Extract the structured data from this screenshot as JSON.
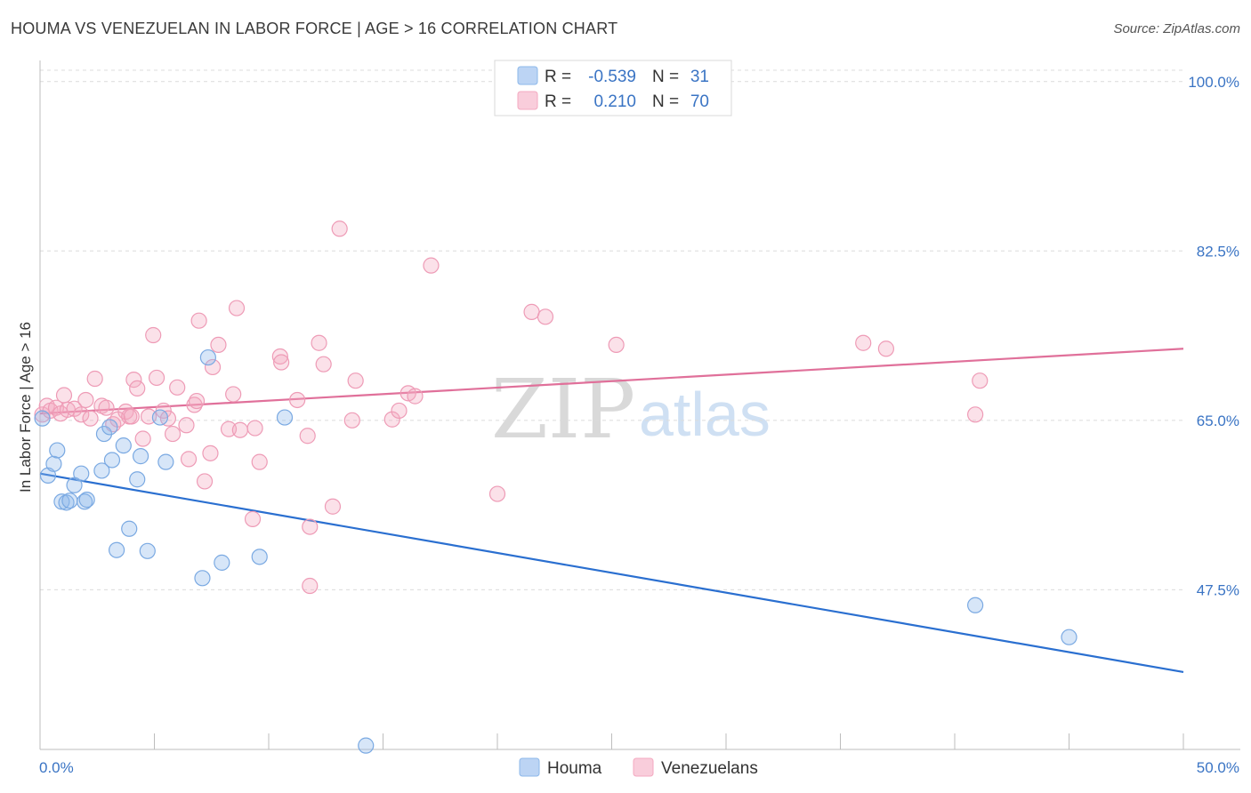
{
  "title": "HOUMA VS VENEZUELAN IN LABOR FORCE | AGE > 16 CORRELATION CHART",
  "source": "Source: ZipAtlas.com",
  "watermark": {
    "zip": "ZIP",
    "atlas": "atlas"
  },
  "colors": {
    "houma": "#8db8ea",
    "houma_line": "#2a6fd0",
    "venezuelans": "#f4a9c0",
    "venezuelans_line": "#e0709a",
    "tick_text": "#3a74c4"
  },
  "legend": {
    "rows": [
      {
        "r_label": "R =",
        "r_value": "-0.539",
        "n_label": "N =",
        "n_value": "31"
      },
      {
        "r_label": "R =",
        "r_value": "0.210",
        "n_label": "N =",
        "n_value": "70"
      }
    ]
  },
  "bottom_legend": [
    "Houma",
    "Venezuelans"
  ],
  "chart_data": {
    "type": "scatter",
    "title": "HOUMA VS VENEZUELAN IN LABOR FORCE | AGE > 16 CORRELATION CHART",
    "xlabel": "",
    "ylabel": "In Labor Force | Age > 16",
    "xlim": [
      0,
      50
    ],
    "ylim": [
      31,
      102
    ],
    "x_tick_labels": [
      "0.0%",
      "50.0%"
    ],
    "y_ticks": [
      47.5,
      65.0,
      82.5,
      100.0
    ],
    "y_tick_labels": [
      "47.5%",
      "65.0%",
      "82.5%",
      "100.0%"
    ],
    "grid": true,
    "legend_position": "top-center",
    "series": [
      {
        "name": "Houma",
        "r": -0.539,
        "n": 31,
        "trend": {
          "x": [
            0,
            50
          ],
          "y": [
            59.5,
            39.0
          ]
        },
        "points": [
          [
            0.1,
            65.2
          ],
          [
            0.35,
            59.3
          ],
          [
            0.6,
            60.5
          ],
          [
            0.75,
            61.9
          ],
          [
            0.95,
            56.6
          ],
          [
            1.15,
            56.5
          ],
          [
            1.3,
            56.7
          ],
          [
            1.5,
            58.3
          ],
          [
            1.8,
            59.5
          ],
          [
            1.95,
            56.6
          ],
          [
            2.05,
            56.8
          ],
          [
            2.7,
            59.8
          ],
          [
            2.8,
            63.6
          ],
          [
            3.05,
            64.3
          ],
          [
            3.15,
            60.9
          ],
          [
            3.35,
            51.6
          ],
          [
            3.65,
            62.4
          ],
          [
            3.9,
            53.8
          ],
          [
            4.25,
            58.9
          ],
          [
            4.4,
            61.3
          ],
          [
            4.7,
            51.5
          ],
          [
            5.25,
            65.3
          ],
          [
            5.5,
            60.7
          ],
          [
            7.1,
            48.7
          ],
          [
            7.35,
            71.5
          ],
          [
            7.95,
            50.3
          ],
          [
            9.6,
            50.9
          ],
          [
            10.7,
            65.3
          ],
          [
            14.25,
            31.4
          ],
          [
            40.9,
            45.9
          ],
          [
            45.0,
            42.6
          ]
        ]
      },
      {
        "name": "Venezuelans",
        "r": 0.21,
        "n": 70,
        "trend": {
          "x": [
            0,
            50
          ],
          "y": [
            65.7,
            72.4
          ]
        },
        "points": [
          [
            0.1,
            65.6
          ],
          [
            0.3,
            66.5
          ],
          [
            0.45,
            66.0
          ],
          [
            0.7,
            66.3
          ],
          [
            0.9,
            65.7
          ],
          [
            1.05,
            67.6
          ],
          [
            1.2,
            66.1
          ],
          [
            1.5,
            66.2
          ],
          [
            1.8,
            65.6
          ],
          [
            2.0,
            67.1
          ],
          [
            2.2,
            65.2
          ],
          [
            2.4,
            69.3
          ],
          [
            2.7,
            66.5
          ],
          [
            2.9,
            66.3
          ],
          [
            3.2,
            64.6
          ],
          [
            3.4,
            65.1
          ],
          [
            3.75,
            65.9
          ],
          [
            3.9,
            65.4
          ],
          [
            4.0,
            65.4
          ],
          [
            4.1,
            69.2
          ],
          [
            4.25,
            68.3
          ],
          [
            4.5,
            63.1
          ],
          [
            4.75,
            65.4
          ],
          [
            4.95,
            73.8
          ],
          [
            5.1,
            69.4
          ],
          [
            5.4,
            66.0
          ],
          [
            5.6,
            65.2
          ],
          [
            5.8,
            63.6
          ],
          [
            6.0,
            68.4
          ],
          [
            6.4,
            64.5
          ],
          [
            6.5,
            61.0
          ],
          [
            6.75,
            66.6
          ],
          [
            6.85,
            67.0
          ],
          [
            6.95,
            75.3
          ],
          [
            7.2,
            58.7
          ],
          [
            7.45,
            61.6
          ],
          [
            7.55,
            70.5
          ],
          [
            7.8,
            72.8
          ],
          [
            8.25,
            64.1
          ],
          [
            8.45,
            67.7
          ],
          [
            8.6,
            76.6
          ],
          [
            8.75,
            64.0
          ],
          [
            9.3,
            54.8
          ],
          [
            9.4,
            64.2
          ],
          [
            9.6,
            60.7
          ],
          [
            10.5,
            71.6
          ],
          [
            10.55,
            71.0
          ],
          [
            11.25,
            67.1
          ],
          [
            11.7,
            63.4
          ],
          [
            12.2,
            73.0
          ],
          [
            12.4,
            70.8
          ],
          [
            12.8,
            56.1
          ],
          [
            13.1,
            84.8
          ],
          [
            13.65,
            65.0
          ],
          [
            13.8,
            69.1
          ],
          [
            15.4,
            65.1
          ],
          [
            15.7,
            66.0
          ],
          [
            16.1,
            67.8
          ],
          [
            16.4,
            67.5
          ],
          [
            17.1,
            81.0
          ],
          [
            20.0,
            57.4
          ],
          [
            21.5,
            76.2
          ],
          [
            22.1,
            75.7
          ],
          [
            25.2,
            72.8
          ],
          [
            36.0,
            73.0
          ],
          [
            37.0,
            72.4
          ],
          [
            40.9,
            65.6
          ],
          [
            41.1,
            69.1
          ],
          [
            11.8,
            54.0
          ],
          [
            11.8,
            47.9
          ]
        ]
      }
    ]
  }
}
